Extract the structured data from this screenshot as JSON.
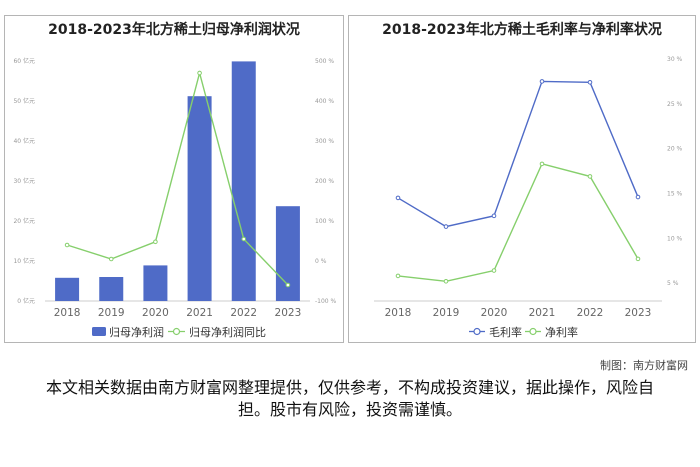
{
  "charts": [
    {
      "title": "2018-2023年北方稀土归母净利润状况"
    },
    {
      "title": "2018-2023年北方稀土毛利率与净利率状况"
    }
  ],
  "chart_data": [
    {
      "type": "bar",
      "title": "2018-2023年北方稀土归母净利润状况",
      "categories": [
        "2018",
        "2019",
        "2020",
        "2021",
        "2022",
        "2023"
      ],
      "series": [
        {
          "name": "归母净利润",
          "kind": "bar",
          "axis": "left",
          "color": "#4f6bc7",
          "values": [
            5.8,
            6.0,
            8.9,
            51.2,
            59.9,
            23.7
          ]
        },
        {
          "name": "归母净利润同比",
          "kind": "line",
          "axis": "right",
          "color": "#86cf6c",
          "values": [
            40,
            5,
            48,
            470,
            55,
            -60
          ]
        }
      ],
      "y_left": {
        "ticks": [
          "0 亿元",
          "10 亿元",
          "20 亿元",
          "30 亿元",
          "40 亿元",
          "50 亿元",
          "60 亿元"
        ],
        "ylim": [
          0,
          60
        ]
      },
      "y_right": {
        "ticks": [
          "-100 %",
          "0 %",
          "100 %",
          "200 %",
          "300 %",
          "400 %",
          "500 %"
        ],
        "ylim": [
          -100,
          500
        ]
      },
      "legend": "bottom",
      "grid": false
    },
    {
      "type": "line",
      "title": "2018-2023年北方稀土毛利率与净利率状况",
      "categories": [
        "2018",
        "2019",
        "2020",
        "2021",
        "2022",
        "2023"
      ],
      "series": [
        {
          "name": "毛利率",
          "color": "#4f6bc7",
          "values": [
            14.5,
            11.3,
            12.5,
            27.5,
            27.4,
            14.6
          ]
        },
        {
          "name": "净利率",
          "color": "#86cf6c",
          "values": [
            5.8,
            5.2,
            6.4,
            18.3,
            16.9,
            7.7
          ]
        }
      ],
      "y_right": {
        "ticks": [
          "5 %",
          "10 %",
          "15 %",
          "20 %",
          "25 %",
          "30 %"
        ],
        "ylim": [
          3,
          30
        ]
      },
      "legend": "bottom",
      "grid": false
    }
  ],
  "footer": {
    "credit": "制图：南方财富网",
    "disclaimer": "本文相关数据由南方财富网整理提供，仅供参考，不构成投资建议，据此操作，风险自担。股市有风险，投资需谨慎。"
  }
}
